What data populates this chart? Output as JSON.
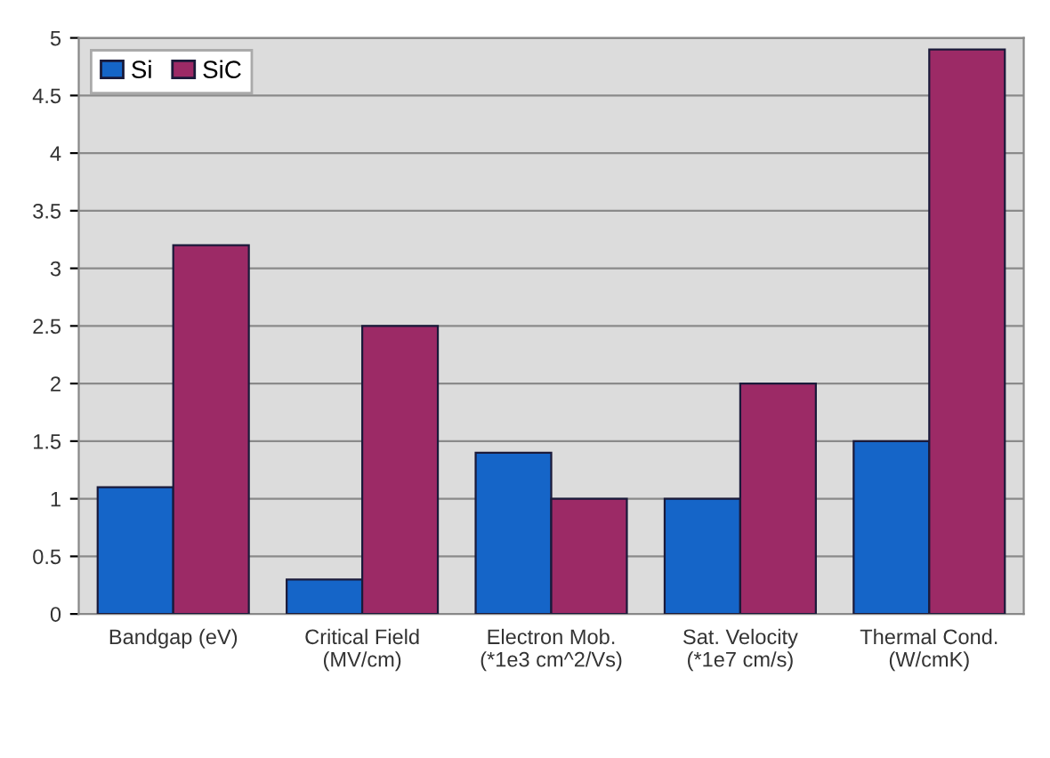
{
  "chart_data": {
    "type": "bar",
    "categories": [
      "Bandgap (eV)",
      "Critical Field\n(MV/cm)",
      "Electron Mob.\n(*1e3 cm^2/Vs)",
      "Sat. Velocity\n(*1e7 cm/s)",
      "Thermal Cond.\n(W/cmK)"
    ],
    "series": [
      {
        "name": "Si",
        "color": "#1565c8",
        "values": [
          1.1,
          0.3,
          1.4,
          1.0,
          1.5
        ]
      },
      {
        "name": "SiC",
        "color": "#9c2a66",
        "values": [
          3.2,
          2.5,
          1.0,
          2.0,
          4.9
        ]
      }
    ],
    "ylim": [
      0,
      5
    ],
    "yticks": [
      0,
      0.5,
      1,
      1.5,
      2,
      2.5,
      3,
      3.5,
      4,
      4.5,
      5
    ],
    "grid": "y",
    "legend": "top left"
  }
}
